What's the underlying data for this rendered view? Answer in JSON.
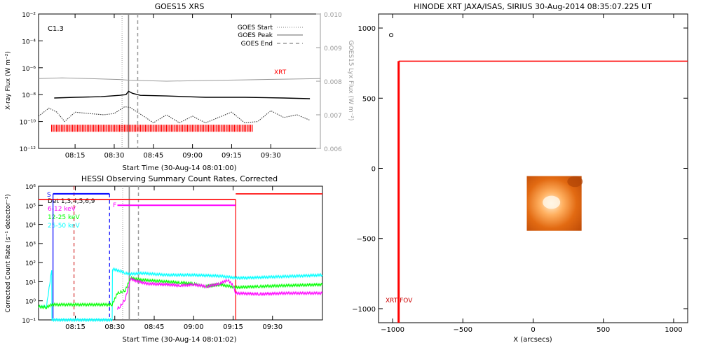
{
  "chart_data": [
    {
      "type": "line",
      "title": "GOES15 XRS",
      "xlabel": "Start Time (30-Aug-14 08:01:00)",
      "ylabel": "X-ray Flux (W m⁻²)",
      "ylabel_right": "GOES15 Lyx Flux (W m⁻²)",
      "xlim_min": [
        481,
        589
      ],
      "ylim_exp": [
        -12,
        -2
      ],
      "ylim_right": [
        0.006,
        0.01
      ],
      "x_ticks": [
        "08:15",
        "08:30",
        "08:45",
        "09:00",
        "09:15",
        "09:30"
      ],
      "x_tick_min": [
        495,
        510,
        525,
        540,
        555,
        570
      ],
      "y_ticks": [
        "10⁻¹²",
        "10⁻¹⁰",
        "10⁻⁸",
        "10⁻⁶",
        "10⁻⁴",
        "10⁻²"
      ],
      "y_tick_exp": [
        -12,
        -10,
        -8,
        -6,
        -4,
        -2
      ],
      "y_ticks_right": [
        "0.006",
        "0.007",
        "0.008",
        "0.009",
        "0.010"
      ],
      "annotation": "C1.3",
      "xrt_label": "XRT",
      "legend": [
        "GOES Start",
        "GOES Peak",
        "GOES End"
      ],
      "events": {
        "start_min": 513,
        "peak_min": 515.5,
        "end_min": 519
      },
      "series": [
        {
          "name": "",
          "color": "#000000",
          "x": [
            487,
            495,
            505,
            512,
            514.5,
            515.5,
            517,
            520,
            530,
            545,
            560,
            575,
            585
          ],
          "y_exp": [
            -8.25,
            -8.2,
            -8.15,
            -8.05,
            -8.0,
            -7.75,
            -7.9,
            -8.05,
            -8.1,
            -8.2,
            -8.2,
            -8.25,
            -8.3
          ]
        },
        {
          "name": "",
          "color": "#999999",
          "x": [
            481,
            490,
            500,
            512,
            516,
            530,
            545,
            560,
            575,
            589
          ],
          "y_right": [
            0.00808,
            0.0081,
            0.00808,
            0.00805,
            0.00803,
            0.008,
            0.00802,
            0.00804,
            0.00806,
            0.00808
          ]
        },
        {
          "name": "",
          "color": "#333333",
          "x": [
            481,
            485,
            488,
            491,
            495,
            500,
            506,
            510,
            514,
            516,
            518,
            522,
            525,
            530,
            535,
            540,
            545,
            550,
            555,
            560,
            565,
            570,
            575,
            580,
            585
          ],
          "y_exp": [
            -9.6,
            -9.0,
            -9.3,
            -10.0,
            -9.3,
            -9.4,
            -9.5,
            -9.4,
            -8.9,
            -8.95,
            -9.2,
            -9.7,
            -10.1,
            -9.5,
            -10.1,
            -9.6,
            -10.1,
            -9.7,
            -9.3,
            -10.1,
            -10.0,
            -9.2,
            -9.7,
            -9.5,
            -9.9
          ]
        }
      ],
      "xrt_bar": {
        "color": "#ff0000",
        "start_min": 486,
        "end_min": 563,
        "level_exp": -10.5
      }
    },
    {
      "type": "line",
      "title": "HESSI Observing Summary Count Rates, Corrected",
      "xlabel": "Start Time (30-Aug-14 08:01:02)",
      "ylabel": "Corrected Count Rate (s⁻¹ detector⁻¹)",
      "xlim_min": [
        481,
        589
      ],
      "ylim_exp": [
        -1,
        6
      ],
      "x_ticks": [
        "08:15",
        "08:30",
        "08:45",
        "09:00",
        "09:15",
        "09:30"
      ],
      "x_tick_min": [
        495,
        510,
        525,
        540,
        555,
        570
      ],
      "y_ticks": [
        "10⁻¹",
        "10⁰",
        "10¹",
        "10²",
        "10³",
        "10⁴",
        "10⁵",
        "10⁶"
      ],
      "y_tick_exp": [
        -1,
        0,
        1,
        2,
        3,
        4,
        5,
        6
      ],
      "legend": [
        "Det 1,3,4,5,6,9",
        "6-12 keV",
        "12-25 keV",
        "25-50 keV"
      ],
      "legend_colors": [
        "#000000",
        "#ff00ff",
        "#00ff00",
        "#00ffff"
      ],
      "flag_labels": [
        "S",
        "F"
      ],
      "events": {
        "start_min": 513,
        "peak_min": 515.5,
        "end_min": 519
      },
      "flags": {
        "s_start": 486.5,
        "s_end": 508,
        "s_level_exp": 5.6,
        "f_start": 511,
        "f_end": 556,
        "f_level_exp": 5.0,
        "blue_solid_min": 486.5,
        "blue_dashed_min": 508,
        "red_dashed_min": 494.5,
        "red_solid_min": 556,
        "red_level_exp": 5.3,
        "red_level2_exp": 5.6
      },
      "series": [
        {
          "name": "25-50 keV",
          "color": "#00ffff",
          "x": [
            481,
            484,
            486,
            486.1,
            509,
            509.1,
            511,
            514,
            516,
            520,
            530,
            540,
            550,
            556,
            560,
            570,
            580,
            589
          ],
          "y_exp": [
            -0.3,
            -0.3,
            1.6,
            -1.0,
            -1.0,
            1.65,
            1.6,
            1.45,
            1.4,
            1.45,
            1.35,
            1.35,
            1.3,
            1.2,
            1.2,
            1.25,
            1.3,
            1.35
          ]
        },
        {
          "name": "12-25 keV",
          "color": "#00ff00",
          "x": [
            481,
            484,
            486,
            509,
            511,
            512,
            513,
            514,
            516,
            520,
            530,
            535,
            540,
            544,
            550,
            556,
            565,
            575,
            589
          ],
          "y_exp": [
            -0.3,
            -0.35,
            -0.2,
            -0.2,
            0.4,
            0.45,
            0.5,
            0.55,
            1.2,
            1.1,
            1.0,
            0.95,
            0.9,
            0.75,
            0.85,
            0.7,
            0.75,
            0.8,
            0.85
          ]
        },
        {
          "name": "6-12 keV",
          "color": "#ff00ff",
          "x": [
            511,
            512,
            513,
            514,
            516,
            518,
            522,
            530,
            535,
            540,
            545,
            550,
            553,
            555,
            556,
            565,
            575,
            589
          ],
          "y_exp": [
            -0.4,
            -0.3,
            -0.1,
            0.1,
            1.15,
            1.05,
            0.9,
            0.85,
            0.8,
            0.85,
            0.75,
            0.9,
            1.1,
            0.8,
            0.4,
            0.35,
            0.4,
            0.4
          ]
        }
      ]
    },
    {
      "type": "image",
      "title": "HINODE XRT JAXA/ISAS, SIRIUS 30-Aug-2014 08:35:07.225 UT",
      "xlabel": "X (arcsecs)",
      "ylabel": "",
      "xlim": [
        -1100,
        1100
      ],
      "ylim": [
        -1100,
        1100
      ],
      "x_ticks": [
        -1000,
        -500,
        0,
        500,
        1000
      ],
      "x_tick_labels": [
        "−1000",
        "−500",
        "0",
        "500",
        "1000"
      ],
      "y_ticks": [
        -1000,
        -500,
        0,
        500,
        1000
      ],
      "y_tick_labels": [
        "−1000",
        "−500",
        "0",
        "500",
        "1000"
      ],
      "fov_label": "XRT FOV",
      "fov": {
        "x0": -957,
        "x1": 1100,
        "y0": -1100,
        "y1": 764,
        "color": "#ff0000"
      },
      "image_patch": {
        "x0": -45,
        "x1": 345,
        "y0": -445,
        "y1": -55,
        "cmap": "orange"
      },
      "marker": {
        "x": -1010,
        "y": 950
      }
    }
  ]
}
